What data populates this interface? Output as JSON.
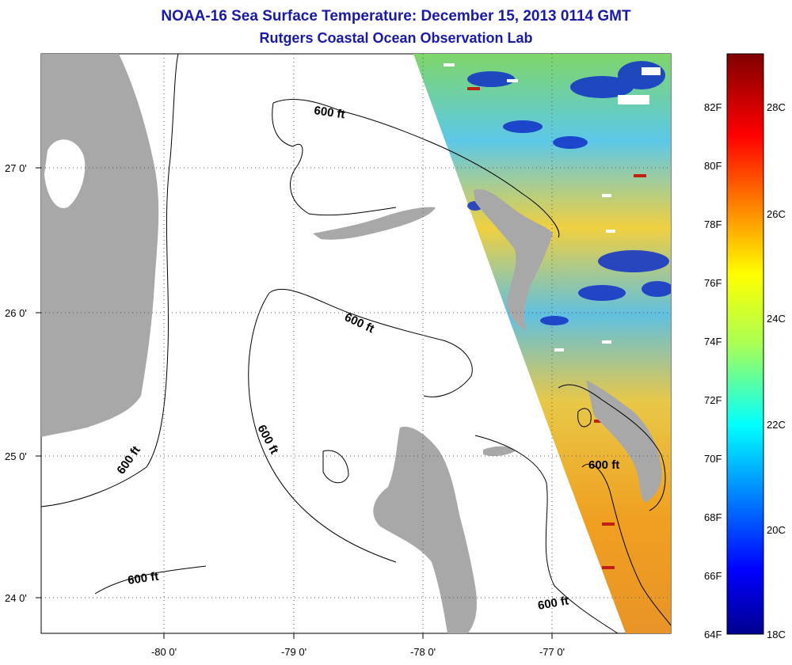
{
  "header": {
    "title": "NOAA-16 Sea Surface Temperature:  December 15, 2013 0114 GMT",
    "subtitle": "Rutgers Coastal Ocean Observation Lab"
  },
  "map": {
    "lat_ticks": [
      "27 0'",
      "26 0'",
      "25 0'",
      "24 0'"
    ],
    "lon_ticks": [
      "-80 0'",
      "-79 0'",
      "-78 0'",
      "-77 0'"
    ],
    "contour_labels": [
      "600 ft",
      "600 ft",
      "600 ft",
      "600 ft",
      "600 ft",
      "600 ft"
    ],
    "colors": {
      "land": "#a8a8a8",
      "background": "#ffffff",
      "title": "#1a1aa6"
    }
  },
  "colorbar": {
    "fahrenheit_labels": [
      "82F",
      "80F",
      "78F",
      "76F",
      "74F",
      "72F",
      "70F",
      "68F",
      "66F",
      "64F"
    ],
    "celsius_labels": [
      "28C",
      "26C",
      "24C",
      "22C",
      "20C",
      "18C"
    ],
    "min_c": 18,
    "max_c": 29.4
  }
}
